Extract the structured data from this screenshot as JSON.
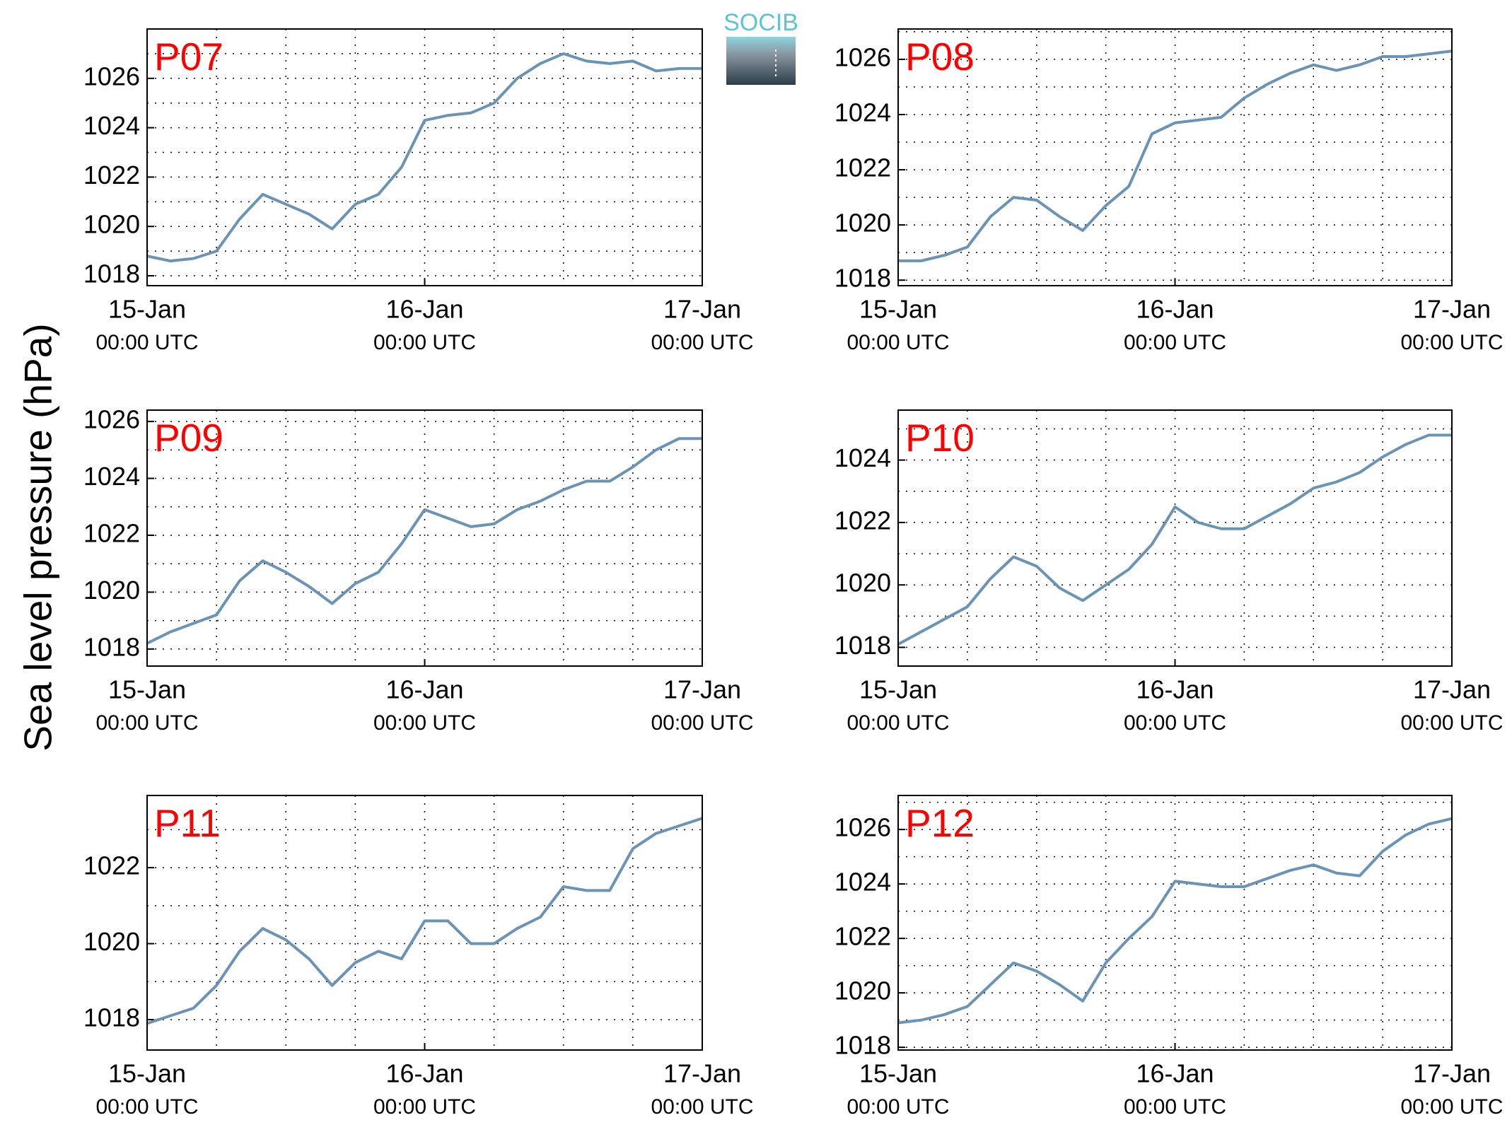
{
  "ylabel": "Sea level pressure (hPa)",
  "logo": "SOCIB",
  "chart_data": [
    {
      "type": "line",
      "title": "P07",
      "x": [
        0,
        2,
        4,
        6,
        8,
        10,
        12,
        14,
        16,
        18,
        20,
        22,
        24,
        26,
        28,
        30,
        32,
        34,
        36,
        38,
        40,
        42,
        44,
        46,
        48
      ],
      "series": [
        {
          "name": "P07",
          "color": "#6a93b5",
          "values": [
            1018.8,
            1018.6,
            1018.7,
            1019.0,
            1020.3,
            1021.3,
            1020.9,
            1020.5,
            1019.9,
            1020.9,
            1021.3,
            1022.4,
            1024.3,
            1024.5,
            1024.6,
            1025.0,
            1026.0,
            1026.6,
            1027.0,
            1026.7,
            1026.6,
            1026.7,
            1026.3,
            1026.4,
            1026.4
          ]
        }
      ],
      "xlim": [
        0,
        48
      ],
      "xticks": [
        {
          "value": 0,
          "label": [
            "15-Jan",
            "00:00 UTC"
          ]
        },
        {
          "value": 24,
          "label": [
            "16-Jan",
            "00:00 UTC"
          ]
        },
        {
          "value": 48,
          "label": [
            "17-Jan",
            "00:00 UTC"
          ]
        }
      ],
      "xminor": [
        6,
        12,
        18,
        30,
        36,
        42
      ],
      "ylim": [
        1017.6,
        1028
      ],
      "yticks": [
        1018,
        1020,
        1022,
        1024,
        1026
      ],
      "yminor": [
        1019,
        1021,
        1023,
        1025,
        1027
      ],
      "grid": true
    },
    {
      "type": "line",
      "title": "P08",
      "x": [
        0,
        2,
        4,
        6,
        8,
        10,
        12,
        14,
        16,
        18,
        20,
        22,
        24,
        26,
        28,
        30,
        32,
        34,
        36,
        38,
        40,
        42,
        44,
        46,
        48
      ],
      "series": [
        {
          "name": "P08",
          "color": "#6a93b5",
          "values": [
            1018.7,
            1018.7,
            1018.9,
            1019.2,
            1020.3,
            1021.0,
            1020.9,
            1020.3,
            1019.8,
            1020.7,
            1021.4,
            1023.3,
            1023.7,
            1023.8,
            1023.9,
            1024.6,
            1025.1,
            1025.5,
            1025.8,
            1025.6,
            1025.8,
            1026.1,
            1026.1,
            1026.2,
            1026.3
          ]
        }
      ],
      "xlim": [
        0,
        48
      ],
      "xticks": [
        {
          "value": 0,
          "label": [
            "15-Jan",
            "00:00 UTC"
          ]
        },
        {
          "value": 24,
          "label": [
            "16-Jan",
            "00:00 UTC"
          ]
        },
        {
          "value": 48,
          "label": [
            "17-Jan",
            "00:00 UTC"
          ]
        }
      ],
      "xminor": [
        6,
        12,
        18,
        30,
        36,
        42
      ],
      "ylim": [
        1017.8,
        1027.1
      ],
      "yticks": [
        1018,
        1020,
        1022,
        1024,
        1026
      ],
      "yminor": [
        1019,
        1021,
        1023,
        1025,
        1027
      ],
      "grid": true
    },
    {
      "type": "line",
      "title": "P09",
      "x": [
        0,
        2,
        4,
        6,
        8,
        10,
        12,
        14,
        16,
        18,
        20,
        22,
        24,
        26,
        28,
        30,
        32,
        34,
        36,
        38,
        40,
        42,
        44,
        46,
        48
      ],
      "series": [
        {
          "name": "P09",
          "color": "#6a93b5",
          "values": [
            1018.2,
            1018.6,
            1018.9,
            1019.2,
            1020.4,
            1021.1,
            1020.7,
            1020.2,
            1019.6,
            1020.3,
            1020.7,
            1021.7,
            1022.9,
            1022.6,
            1022.3,
            1022.4,
            1022.9,
            1023.2,
            1023.6,
            1023.9,
            1023.9,
            1024.4,
            1025.0,
            1025.4,
            1025.4
          ]
        }
      ],
      "xlim": [
        0,
        48
      ],
      "xticks": [
        {
          "value": 0,
          "label": [
            "15-Jan",
            "00:00 UTC"
          ]
        },
        {
          "value": 24,
          "label": [
            "16-Jan",
            "00:00 UTC"
          ]
        },
        {
          "value": 48,
          "label": [
            "17-Jan",
            "00:00 UTC"
          ]
        }
      ],
      "xminor": [
        6,
        12,
        18,
        30,
        36,
        42
      ],
      "ylim": [
        1017.4,
        1026.4
      ],
      "yticks": [
        1018,
        1020,
        1022,
        1024,
        1026
      ],
      "yminor": [
        1019,
        1021,
        1023,
        1025
      ],
      "grid": true
    },
    {
      "type": "line",
      "title": "P10",
      "x": [
        0,
        2,
        4,
        6,
        8,
        10,
        12,
        14,
        16,
        18,
        20,
        22,
        24,
        26,
        28,
        30,
        32,
        34,
        36,
        38,
        40,
        42,
        44,
        46,
        48
      ],
      "series": [
        {
          "name": "P10",
          "color": "#6a93b5",
          "values": [
            1018.1,
            1018.5,
            1018.9,
            1019.3,
            1020.2,
            1020.9,
            1020.6,
            1019.9,
            1019.5,
            1020.0,
            1020.5,
            1021.3,
            1022.5,
            1022.0,
            1021.8,
            1021.8,
            1022.2,
            1022.6,
            1023.1,
            1023.3,
            1023.6,
            1024.1,
            1024.5,
            1024.8,
            1024.8
          ]
        }
      ],
      "xlim": [
        0,
        48
      ],
      "xticks": [
        {
          "value": 0,
          "label": [
            "15-Jan",
            "00:00 UTC"
          ]
        },
        {
          "value": 24,
          "label": [
            "16-Jan",
            "00:00 UTC"
          ]
        },
        {
          "value": 48,
          "label": [
            "17-Jan",
            "00:00 UTC"
          ]
        }
      ],
      "xminor": [
        6,
        12,
        18,
        30,
        36,
        42
      ],
      "ylim": [
        1017.4,
        1025.6
      ],
      "yticks": [
        1018,
        1020,
        1022,
        1024
      ],
      "yminor": [
        1019,
        1021,
        1023,
        1025
      ],
      "grid": true
    },
    {
      "type": "line",
      "title": "P11",
      "x": [
        0,
        2,
        4,
        6,
        8,
        10,
        12,
        14,
        16,
        18,
        20,
        22,
        24,
        26,
        28,
        30,
        32,
        34,
        36,
        38,
        40,
        42,
        44,
        46,
        48
      ],
      "series": [
        {
          "name": "P11",
          "color": "#6a93b5",
          "values": [
            1017.9,
            1018.1,
            1018.3,
            1018.9,
            1019.8,
            1020.4,
            1020.1,
            1019.6,
            1018.9,
            1019.5,
            1019.8,
            1019.6,
            1020.6,
            1020.6,
            1020.0,
            1020.0,
            1020.4,
            1020.7,
            1021.5,
            1021.4,
            1021.4,
            1022.5,
            1022.9,
            1023.1,
            1023.3
          ]
        }
      ],
      "xlim": [
        0,
        48
      ],
      "xticks": [
        {
          "value": 0,
          "label": [
            "15-Jan",
            "00:00 UTC"
          ]
        },
        {
          "value": 24,
          "label": [
            "16-Jan",
            "00:00 UTC"
          ]
        },
        {
          "value": 48,
          "label": [
            "17-Jan",
            "00:00 UTC"
          ]
        }
      ],
      "xminor": [
        6,
        12,
        18,
        30,
        36,
        42
      ],
      "ylim": [
        1017.2,
        1023.9
      ],
      "yticks": [
        1018,
        1020,
        1022
      ],
      "yminor": [
        1019,
        1021,
        1023
      ],
      "grid": true
    },
    {
      "type": "line",
      "title": "P12",
      "x": [
        0,
        2,
        4,
        6,
        8,
        10,
        12,
        14,
        16,
        18,
        20,
        22,
        24,
        26,
        28,
        30,
        32,
        34,
        36,
        38,
        40,
        42,
        44,
        46,
        48
      ],
      "series": [
        {
          "name": "P12",
          "color": "#6a93b5",
          "values": [
            1018.9,
            1019.0,
            1019.2,
            1019.5,
            1020.3,
            1021.1,
            1020.8,
            1020.3,
            1019.7,
            1021.1,
            1022.0,
            1022.8,
            1024.1,
            1024.0,
            1023.9,
            1023.9,
            1024.2,
            1024.5,
            1024.7,
            1024.4,
            1024.3,
            1025.2,
            1025.8,
            1026.2,
            1026.4
          ]
        }
      ],
      "xlim": [
        0,
        48
      ],
      "xticks": [
        {
          "value": 0,
          "label": [
            "15-Jan",
            "00:00 UTC"
          ]
        },
        {
          "value": 24,
          "label": [
            "16-Jan",
            "00:00 UTC"
          ]
        },
        {
          "value": 48,
          "label": [
            "17-Jan",
            "00:00 UTC"
          ]
        }
      ],
      "xminor": [
        6,
        12,
        18,
        30,
        36,
        42
      ],
      "ylim": [
        1017.9,
        1027.25
      ],
      "yticks": [
        1018,
        1020,
        1022,
        1024,
        1026
      ],
      "yminor": [
        1019,
        1021,
        1023,
        1025,
        1027
      ],
      "grid": true
    }
  ]
}
